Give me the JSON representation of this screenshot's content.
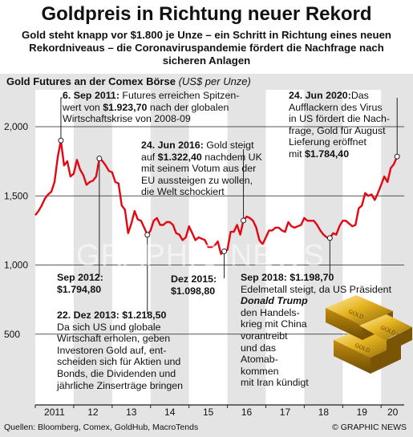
{
  "header": {
    "title": "Goldpreis in Richtung neuer Rekord",
    "subtitle": "Gold steht knapp vor $1.800 je Unze – ein Schritt in Richtung eines neuen Rekordniveaus – die Coronavirus­pandemie fördert die Nachfrage nach sicheren Anlagen"
  },
  "chart_label": {
    "main": "Gold Futures an der Comex Börse",
    "unit": "(US$ per Unze)"
  },
  "colors": {
    "line": "#e30613",
    "grid": "#222222",
    "background": "#e4e4e4",
    "band": "#ffffff"
  },
  "chart_data": {
    "type": "line",
    "ylim": [
      0,
      2000
    ],
    "yticks": [
      "2,000",
      "1,500",
      "1,000",
      "500"
    ],
    "xticks": [
      "2011",
      "12",
      "13",
      "14",
      "15",
      "16",
      "17",
      "18",
      "19",
      "20"
    ],
    "series": [
      {
        "x": [
          "2011-01",
          "2011-02",
          "2011-03",
          "2011-04",
          "2011-05",
          "2011-06",
          "2011-07",
          "2011-08",
          "2011-09",
          "2011-10",
          "2011-11",
          "2011-12",
          "2012-01",
          "2012-02",
          "2012-03",
          "2012-04",
          "2012-05",
          "2012-06",
          "2012-07",
          "2012-08",
          "2012-09",
          "2012-10",
          "2012-11",
          "2012-12",
          "2013-01",
          "2013-02",
          "2013-03",
          "2013-04",
          "2013-05",
          "2013-06",
          "2013-07",
          "2013-08",
          "2013-09",
          "2013-10",
          "2013-11",
          "2013-12",
          "2014-01",
          "2014-02",
          "2014-03",
          "2014-04",
          "2014-05",
          "2014-06",
          "2014-07",
          "2014-08",
          "2014-09",
          "2014-10",
          "2014-11",
          "2014-12",
          "2015-01",
          "2015-02",
          "2015-03",
          "2015-04",
          "2015-05",
          "2015-06",
          "2015-07",
          "2015-08",
          "2015-09",
          "2015-10",
          "2015-11",
          "2015-12",
          "2016-01",
          "2016-02",
          "2016-03",
          "2016-04",
          "2016-05",
          "2016-06",
          "2016-07",
          "2016-08",
          "2016-09",
          "2016-10",
          "2016-11",
          "2016-12",
          "2017-01",
          "2017-02",
          "2017-03",
          "2017-04",
          "2017-05",
          "2017-06",
          "2017-07",
          "2017-08",
          "2017-09",
          "2017-10",
          "2017-11",
          "2017-12",
          "2018-01",
          "2018-02",
          "2018-03",
          "2018-04",
          "2018-05",
          "2018-06",
          "2018-07",
          "2018-08",
          "2018-09",
          "2018-10",
          "2018-11",
          "2018-12",
          "2019-01",
          "2019-02",
          "2019-03",
          "2019-04",
          "2019-05",
          "2019-06",
          "2019-07",
          "2019-08",
          "2019-09",
          "2019-10",
          "2019-11",
          "2019-12",
          "2020-01",
          "2020-02",
          "2020-03",
          "2020-04",
          "2020-05",
          "2020-06"
        ],
        "values": [
          1360,
          1390,
          1430,
          1480,
          1510,
          1530,
          1600,
          1780,
          1900,
          1720,
          1750,
          1640,
          1660,
          1760,
          1690,
          1650,
          1580,
          1600,
          1610,
          1640,
          1770,
          1750,
          1720,
          1680,
          1670,
          1600,
          1590,
          1430,
          1400,
          1230,
          1300,
          1390,
          1330,
          1320,
          1270,
          1218,
          1250,
          1320,
          1340,
          1290,
          1290,
          1310,
          1310,
          1290,
          1230,
          1220,
          1180,
          1200,
          1280,
          1230,
          1180,
          1200,
          1190,
          1180,
          1130,
          1130,
          1140,
          1170,
          1080,
          1099,
          1110,
          1240,
          1240,
          1290,
          1220,
          1322,
          1350,
          1340,
          1320,
          1270,
          1180,
          1150,
          1200,
          1250,
          1250,
          1270,
          1270,
          1250,
          1240,
          1310,
          1280,
          1270,
          1280,
          1290,
          1340,
          1320,
          1320,
          1320,
          1290,
          1250,
          1220,
          1200,
          1195,
          1230,
          1220,
          1280,
          1320,
          1320,
          1300,
          1280,
          1290,
          1410,
          1430,
          1520,
          1500,
          1510,
          1470,
          1520,
          1580,
          1640,
          1600,
          1700,
          1730,
          1784
        ]
      }
    ]
  },
  "annotations": {
    "a2011": {
      "date": "6. Sep 2011:",
      "text_a": " Futures erreichen Spitzen-",
      "text_b": "wert von ",
      "value": "$1.923,70",
      "text_c": " nach der globalen",
      "text_d": "Wirtschaftskrise von 2008-09"
    },
    "a2020": {
      "date": "24. Jun 2020:",
      "text_a": "Das",
      "text_b": "Aufflackern des Virus",
      "text_c": "in US fördert die Nach-",
      "text_d": "frage, Gold für August",
      "text_e": "Lieferung eröffnet",
      "text_f": "mit ",
      "value": "$1.784,40"
    },
    "a2016": {
      "date": "24. Jun 2016:",
      "text_a": " Gold steigt",
      "text_b": "auf ",
      "value": "$1.322,40",
      "text_c": " nachdem UK",
      "text_d": "mit seinem Votum aus der",
      "text_e": "EU aussteigen zu wollen,",
      "text_f": "die Welt schockiert"
    },
    "a2012": {
      "date": "Sep 2012:",
      "value": "$1.794,80"
    },
    "a2015": {
      "date": "Dez 2015:",
      "value": "$1.098,80"
    },
    "a2013": {
      "date": "22. Dez 2013:",
      "value": " $1.218,50",
      "text_a": "Da sich US und globale",
      "text_b": "Wirtschaft erholen, geben",
      "text_c": "Investoren Gold auf, ent-",
      "text_d": "scheiden sich für Aktien und",
      "text_e": "Bonds, die Dividenden und",
      "text_f": "jährliche Zinserträge bringen"
    },
    "a2018": {
      "date": "Sep 2018:",
      "value": " $1.198,70",
      "text_a": "Edelmetall steigt, da US Präsident",
      "name": "Donald Trump",
      "text_b": "den Handels-",
      "text_c": "krieg mit China",
      "text_d": "vorantreibt",
      "text_e": "und das",
      "text_f": "Atomab-",
      "text_g": "kommen",
      "text_h": "mit Iran kündigt"
    }
  },
  "gold_bars": {
    "icon": "gold-bars-icon",
    "labels": [
      "GOLD",
      "GOLD",
      "GOLD"
    ]
  },
  "watermark": "GRAPHIC NEWS",
  "footer": {
    "sources": "Quellen: Bloomberg, Comex, GoldHub, MacroTends",
    "credit": "© GRAPHIC NEWS"
  }
}
